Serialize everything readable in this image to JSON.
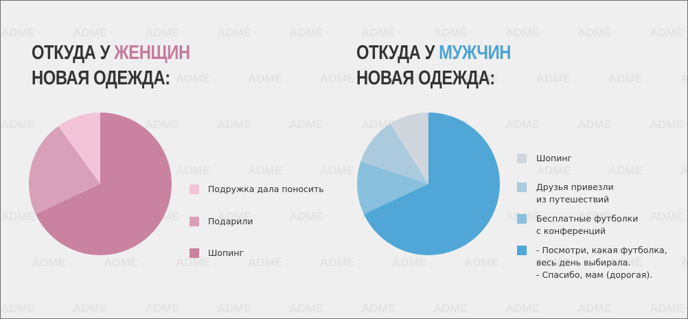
{
  "watermark": "ADME",
  "chart_data": [
    {
      "type": "pie",
      "title_prefix": "ОТКУДА У",
      "title_highlight": "ЖЕНЩИН",
      "title_line2": "НОВАЯ ОДЕЖДА:",
      "highlight_color": "#c47a9c",
      "categories": [
        "Подружка дала поносить",
        "Подарили",
        "Шопинг"
      ],
      "values": [
        10,
        22,
        68
      ],
      "colors": [
        "#f2c4d7",
        "#d9a0b9",
        "#c9829f"
      ]
    },
    {
      "type": "pie",
      "title_prefix": "ОТКУДА У",
      "title_highlight": "МУЖЧИН",
      "title_line2": "НОВАЯ ОДЕЖДА:",
      "highlight_color": "#4aa3d6",
      "categories": [
        "Шопинг",
        "Друзья привезли\nиз путешествий",
        "Бесплатные футболки\nс конференций",
        "- Посмотри, какая футболка,\nвесь день выбирала.\n- Спасибо, мам (дорогая)."
      ],
      "values": [
        9,
        11,
        12,
        68
      ],
      "colors": [
        "#cfd6de",
        "#abcadd",
        "#89c0de",
        "#50a7d7"
      ]
    }
  ]
}
